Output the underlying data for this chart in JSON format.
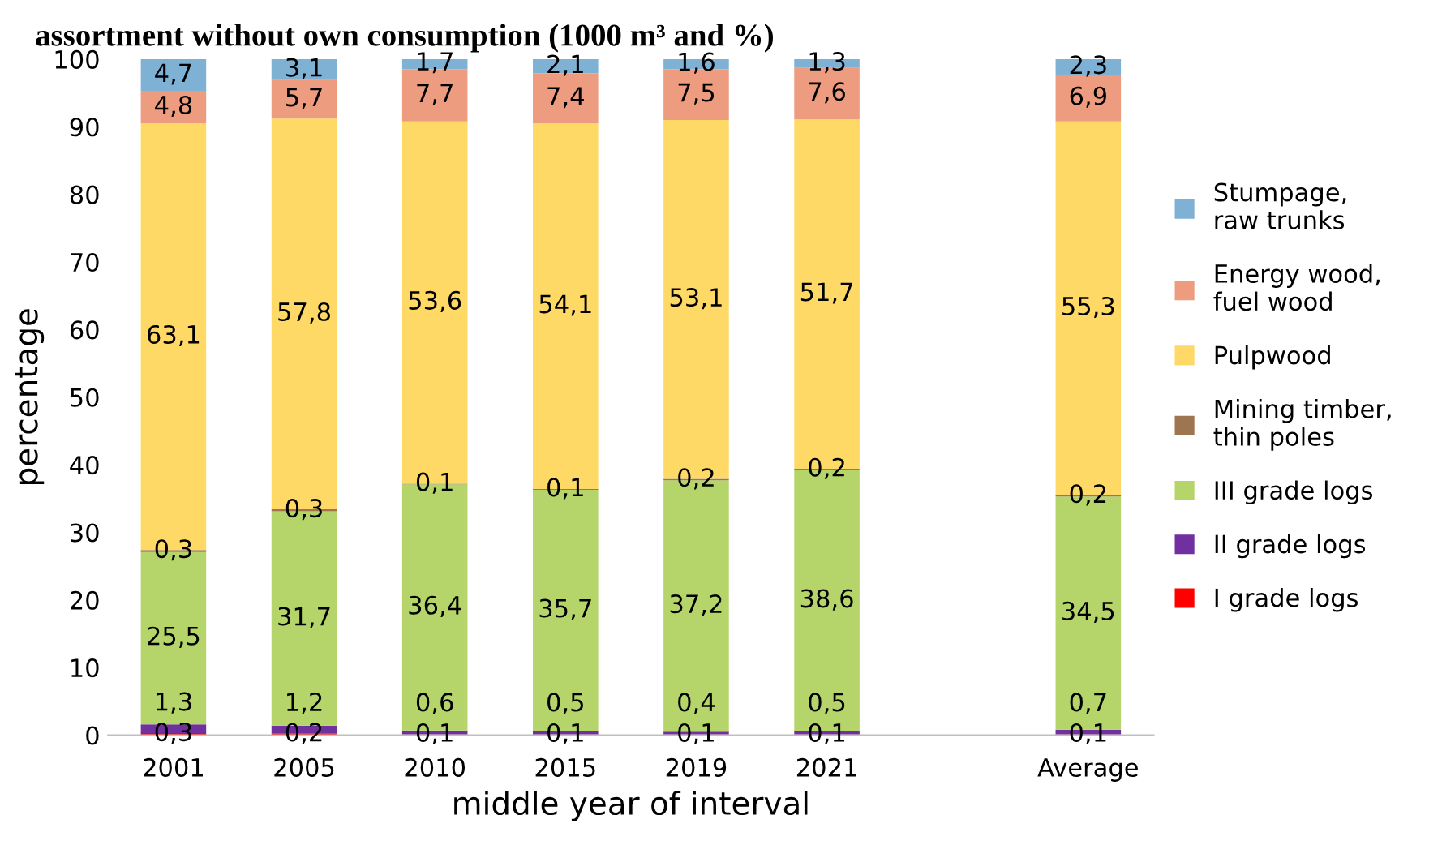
{
  "chart_data": {
    "type": "bar",
    "stacked": true,
    "title": "assortment without own consumption (1000 m³ and %)",
    "xlabel": "middle year of interval",
    "ylabel": "percentage",
    "categories": [
      "2001",
      "2005",
      "2010",
      "2015",
      "2019",
      "2021",
      null,
      "Average"
    ],
    "series": [
      {
        "name": "I grade logs",
        "color": "#ff0000",
        "values": [
          0.3,
          0.2,
          0.1,
          0.1,
          0.1,
          0.1,
          null,
          0.1
        ],
        "value_labels": [
          "0,3",
          "0,2",
          "0,1",
          "0,1",
          "0,1",
          "0,1",
          null,
          "0,1"
        ]
      },
      {
        "name": "II grade logs",
        "color": "#7030a0",
        "values": [
          1.3,
          1.2,
          0.6,
          0.5,
          0.4,
          0.5,
          null,
          0.7
        ],
        "value_labels": [
          "1,3",
          "1,2",
          "0,6",
          "0,5",
          "0,4",
          "0,5",
          null,
          "0,7"
        ]
      },
      {
        "name": "III grade logs",
        "color": "#b5d56a",
        "values": [
          25.5,
          31.7,
          36.4,
          35.7,
          37.2,
          38.6,
          null,
          34.5
        ],
        "value_labels": [
          "25,5",
          "31,7",
          "36,4",
          "35,7",
          "37,2",
          "38,6",
          null,
          "34,5"
        ]
      },
      {
        "name": "Mining timber, thin poles",
        "color": "#9e7550",
        "values": [
          0.3,
          0.3,
          0.1,
          0.1,
          0.2,
          0.2,
          null,
          0.2
        ],
        "value_labels": [
          "0,3",
          "0,3",
          "0,1",
          "0,1",
          "0,2",
          "0,2",
          null,
          "0,2"
        ]
      },
      {
        "name": "Pulpwood",
        "color": "#ffd966",
        "values": [
          63.1,
          57.8,
          53.6,
          54.1,
          53.1,
          51.7,
          null,
          55.3
        ],
        "value_labels": [
          "63,1",
          "57,8",
          "53,6",
          "54,1",
          "53,1",
          "51,7",
          null,
          "55,3"
        ]
      },
      {
        "name": "Energy wood, fuel wood",
        "color": "#ee9c7f",
        "values": [
          4.8,
          5.7,
          7.7,
          7.4,
          7.5,
          7.6,
          null,
          6.9
        ],
        "value_labels": [
          "4,8",
          "5,7",
          "7,7",
          "7,4",
          "7,5",
          "7,6",
          null,
          "6,9"
        ]
      },
      {
        "name": "Stumpage, raw trunks",
        "color": "#7fb1d5",
        "values": [
          4.7,
          3.1,
          1.7,
          2.1,
          1.6,
          1.3,
          null,
          2.3
        ],
        "value_labels": [
          "4,7",
          "3,1",
          "1,7",
          "2,1",
          "1,6",
          "1,3",
          null,
          "2,3"
        ]
      }
    ],
    "ylim": [
      0,
      100
    ],
    "yticks": [
      0,
      10,
      20,
      30,
      40,
      50,
      60,
      70,
      80,
      90,
      100
    ],
    "grid": false,
    "legend": "right"
  }
}
